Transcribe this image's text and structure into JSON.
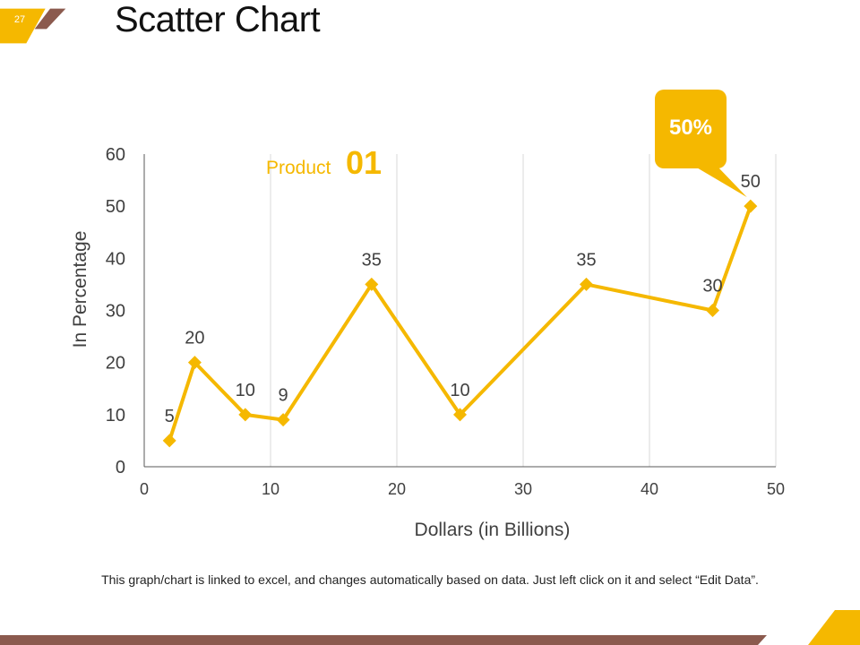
{
  "slide": {
    "number": "27",
    "title": "Scatter Chart",
    "footnote": "This graph/chart is linked to excel, and changes automatically based on data. Just left click on it and select “Edit Data”."
  },
  "colors": {
    "accent": "#F5B800",
    "brown": "#8B5A4E",
    "grid": "#D9D9D9",
    "axis_text": "#404040"
  },
  "chart_data": {
    "type": "scatter",
    "title": "",
    "xlabel": "Dollars (in Billions)",
    "ylabel": "In Percentage",
    "xlim": [
      0,
      50
    ],
    "ylim": [
      0,
      60
    ],
    "xticks": [
      0,
      10,
      20,
      30,
      40,
      50
    ],
    "yticks": [
      0,
      10,
      20,
      30,
      40,
      50,
      60
    ],
    "grid": "vertical",
    "series": [
      {
        "name": "Product 01",
        "legend_word": "Product",
        "legend_number": "01",
        "x": [
          2,
          4,
          8,
          11,
          18,
          25,
          35,
          45,
          48
        ],
        "y": [
          5,
          20,
          10,
          9,
          35,
          10,
          35,
          30,
          50
        ],
        "labels": [
          "5",
          "20",
          "10",
          "9",
          "35",
          "10",
          "35",
          "30",
          "50"
        ]
      }
    ],
    "callout": {
      "text": "50%",
      "point_index": 8
    }
  }
}
